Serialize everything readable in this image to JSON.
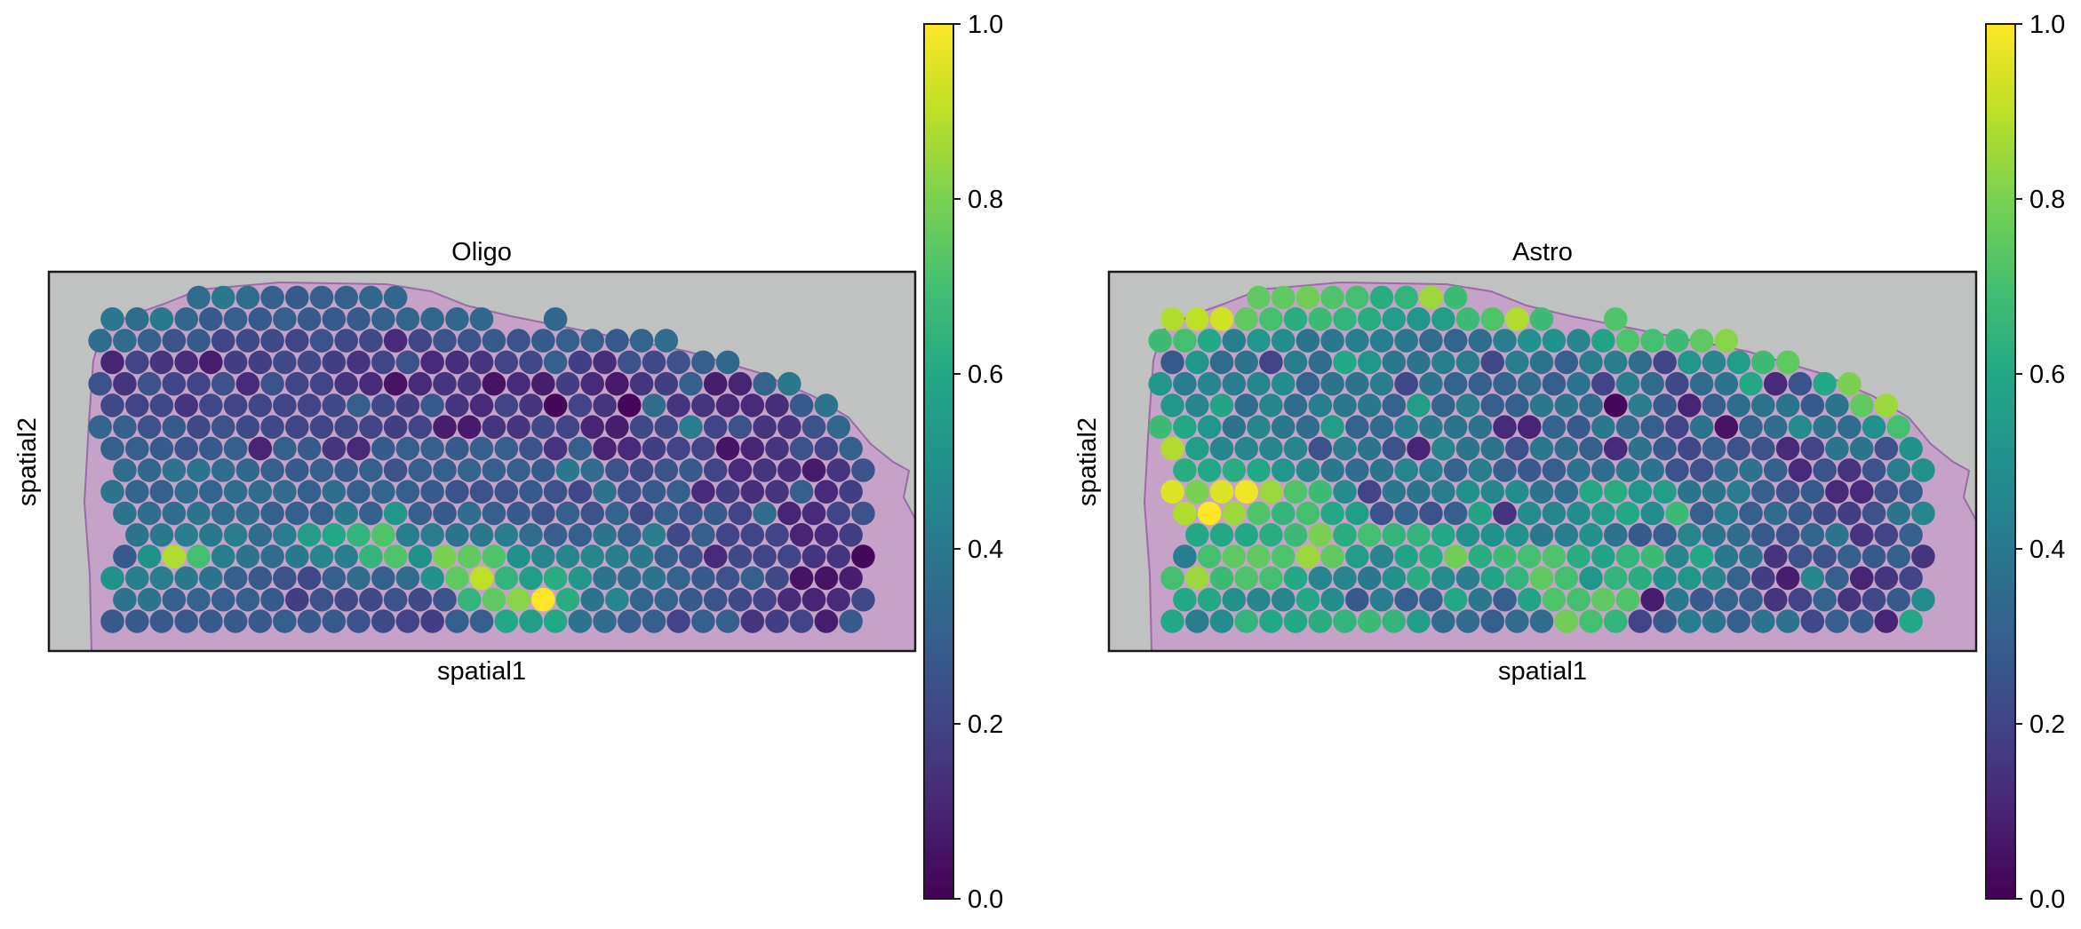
{
  "chart_data": [
    {
      "type": "scatter",
      "subtype": "spatial-spots",
      "title": "Oligo",
      "xlabel": "spatial1",
      "ylabel": "spatial2",
      "colormap": "viridis",
      "clim": [
        0.0,
        1.0
      ],
      "colorbar_ticks": [
        "0.0",
        "0.2",
        "0.4",
        "0.6",
        "0.8",
        "1.0"
      ],
      "rows": [
        {
          "col_start": 8,
          "values": [
            0.35,
            0.4,
            0.35,
            0.3,
            0.28,
            0.3,
            0.3,
            0.33,
            0.33
          ]
        },
        {
          "col_start": 1,
          "values": [
            0.4,
            0.35,
            0.4,
            0.33,
            0.28,
            0.3,
            0.28,
            0.3,
            0.28,
            0.28,
            0.28,
            0.3,
            0.33,
            0.33,
            0.33,
            0.33,
            null,
            null,
            0.33
          ]
        },
        {
          "col_start": 0,
          "values": [
            0.35,
            0.35,
            0.3,
            0.25,
            0.28,
            0.2,
            0.22,
            0.22,
            0.2,
            0.25,
            0.22,
            0.22,
            0.12,
            0.2,
            0.25,
            0.25,
            0.28,
            0.25,
            0.28,
            0.3,
            0.3,
            0.28,
            0.32,
            0.35
          ]
        },
        {
          "col_start": 1,
          "values": [
            0.1,
            0.2,
            0.15,
            0.13,
            0.08,
            0.18,
            0.18,
            0.22,
            0.22,
            0.18,
            0.15,
            0.2,
            0.25,
            0.12,
            0.13,
            0.15,
            0.2,
            0.22,
            0.3,
            0.18,
            0.13,
            0.25,
            0.22,
            0.25,
            0.3,
            0.33
          ]
        },
        {
          "col_start": 0,
          "values": [
            0.25,
            0.15,
            0.25,
            0.2,
            0.2,
            0.25,
            0.12,
            0.25,
            0.2,
            0.2,
            0.15,
            0.12,
            0.05,
            0.12,
            0.15,
            0.15,
            0.05,
            0.12,
            0.08,
            0.18,
            0.12,
            0.07,
            0.15,
            0.18,
            0.3,
            0.08,
            0.1,
            0.32,
            0.4
          ]
        },
        {
          "col_start": 1,
          "values": [
            0.22,
            0.2,
            0.22,
            0.15,
            0.22,
            0.2,
            0.2,
            0.2,
            0.2,
            0.22,
            0.3,
            0.22,
            0.18,
            0.28,
            0.15,
            0.12,
            0.2,
            0.15,
            0.02,
            0.2,
            0.15,
            0.02,
            0.35,
            0.15,
            0.15,
            0.12,
            0.12,
            0.13,
            0.28,
            0.38
          ]
        },
        {
          "col_start": 0,
          "values": [
            0.32,
            0.3,
            0.25,
            0.28,
            0.22,
            0.25,
            0.22,
            0.22,
            0.2,
            0.2,
            0.22,
            0.2,
            0.18,
            0.2,
            0.08,
            0.07,
            0.15,
            0.15,
            0.22,
            0.2,
            0.1,
            0.08,
            0.22,
            0.22,
            0.42,
            0.2,
            0.25,
            0.15,
            0.15,
            0.25,
            0.33
          ]
        },
        {
          "col_start": 1,
          "values": [
            0.3,
            0.3,
            0.28,
            0.25,
            0.28,
            0.3,
            0.1,
            0.3,
            0.28,
            0.15,
            0.12,
            0.28,
            0.3,
            0.3,
            0.28,
            0.3,
            0.3,
            0.25,
            0.15,
            0.3,
            0.1,
            0.12,
            0.18,
            0.2,
            0.2,
            0.05,
            0.1,
            0.15,
            0.25,
            0.2,
            0.3
          ]
        },
        {
          "col_start": 2,
          "values": [
            0.35,
            0.33,
            0.38,
            0.38,
            0.35,
            0.33,
            0.3,
            0.28,
            0.3,
            0.28,
            0.3,
            0.25,
            0.3,
            0.3,
            0.32,
            0.3,
            0.3,
            0.28,
            0.4,
            0.35,
            0.25,
            0.22,
            0.25,
            0.28,
            0.2,
            0.12,
            0.15,
            0.13,
            0.07,
            0.15,
            0.25
          ]
        },
        {
          "col_start": 1,
          "values": [
            0.38,
            0.32,
            0.3,
            0.35,
            0.32,
            0.35,
            0.35,
            0.35,
            0.3,
            0.35,
            0.3,
            0.32,
            0.3,
            0.28,
            0.25,
            0.25,
            0.25,
            0.28,
            0.25,
            0.22,
            0.38,
            0.25,
            0.28,
            0.3,
            0.12,
            0.18,
            0.13,
            0.15,
            0.3,
            0.12,
            0.18
          ]
        },
        {
          "col_start": 2,
          "values": [
            0.38,
            0.35,
            0.35,
            0.38,
            0.35,
            0.35,
            0.3,
            0.3,
            0.3,
            0.4,
            0.3,
            0.52,
            0.3,
            0.28,
            0.35,
            0.3,
            0.28,
            0.25,
            0.3,
            0.25,
            0.32,
            0.22,
            0.3,
            0.25,
            0.28,
            0.2,
            0.35,
            0.1,
            0.12,
            0.2,
            0.25
          ]
        },
        {
          "col_start": 3,
          "values": [
            0.38,
            0.4,
            0.42,
            0.4,
            0.42,
            0.35,
            0.42,
            0.55,
            0.6,
            0.65,
            0.72,
            0.42,
            0.42,
            0.38,
            0.4,
            0.42,
            0.35,
            0.3,
            0.3,
            0.38,
            0.3,
            0.42,
            0.22,
            0.3,
            0.2,
            0.2,
            0.2,
            0.1,
            0.12,
            0.18
          ]
        },
        {
          "col_start": 2,
          "values": [
            0.28,
            0.5,
            0.88,
            0.7,
            0.42,
            0.38,
            0.35,
            0.4,
            0.45,
            0.42,
            0.65,
            0.72,
            0.5,
            0.8,
            0.75,
            0.72,
            0.5,
            0.45,
            0.45,
            0.45,
            0.42,
            0.4,
            0.3,
            0.25,
            0.12,
            0.22,
            0.2,
            0.2,
            0.15,
            0.15,
            0.02
          ]
        },
        {
          "col_start": 1,
          "values": [
            0.5,
            0.42,
            0.42,
            0.4,
            0.38,
            0.3,
            0.28,
            0.25,
            0.22,
            0.3,
            0.35,
            0.3,
            0.35,
            0.5,
            0.75,
            0.9,
            0.65,
            0.55,
            0.62,
            0.52,
            0.38,
            0.35,
            0.38,
            0.32,
            0.28,
            0.25,
            0.3,
            0.22,
            0.05,
            0.05,
            0.08
          ]
        },
        {
          "col_start": 2,
          "values": [
            0.38,
            0.38,
            0.3,
            0.32,
            0.3,
            0.3,
            0.28,
            0.18,
            0.25,
            0.22,
            0.22,
            0.25,
            0.22,
            0.25,
            0.65,
            0.75,
            0.82,
            1.0,
            0.62,
            0.38,
            0.45,
            0.32,
            0.32,
            0.28,
            0.25,
            0.22,
            0.2,
            0.12,
            0.1,
            0.12,
            0.22
          ]
        },
        {
          "col_start": 1,
          "values": [
            0.28,
            0.28,
            0.28,
            0.28,
            0.28,
            0.28,
            0.28,
            0.3,
            0.28,
            0.28,
            0.25,
            0.22,
            0.2,
            0.18,
            0.3,
            0.3,
            0.6,
            0.55,
            0.6,
            0.38,
            0.35,
            0.3,
            0.3,
            0.2,
            0.3,
            0.3,
            0.15,
            0.18,
            0.2,
            0.08,
            0.28
          ]
        }
      ]
    },
    {
      "type": "scatter",
      "subtype": "spatial-spots",
      "title": "Astro",
      "xlabel": "spatial1",
      "ylabel": "spatial2",
      "colormap": "viridis",
      "clim": [
        0.0,
        1.0
      ],
      "colorbar_ticks": [
        "0.0",
        "0.2",
        "0.4",
        "0.6",
        "0.8",
        "1.0"
      ],
      "rows": [
        {
          "col_start": 8,
          "values": [
            0.75,
            0.75,
            0.78,
            0.72,
            0.7,
            0.62,
            0.65,
            0.85,
            0.68
          ]
        },
        {
          "col_start": 1,
          "values": [
            0.88,
            0.9,
            0.93,
            0.75,
            0.7,
            0.62,
            0.68,
            0.65,
            0.62,
            0.55,
            0.52,
            0.55,
            0.68,
            0.72,
            0.88,
            0.68,
            null,
            null,
            0.72
          ]
        },
        {
          "col_start": 0,
          "values": [
            0.68,
            0.7,
            0.6,
            0.42,
            0.52,
            0.48,
            0.38,
            0.4,
            0.42,
            0.42,
            0.4,
            0.35,
            0.32,
            0.35,
            0.42,
            0.5,
            0.5,
            0.45,
            0.58,
            0.72,
            0.7,
            0.68,
            0.75,
            0.82
          ]
        },
        {
          "col_start": 1,
          "values": [
            0.28,
            0.52,
            0.35,
            0.38,
            0.2,
            0.42,
            0.35,
            0.6,
            0.52,
            0.4,
            0.38,
            0.42,
            0.42,
            0.22,
            0.42,
            0.38,
            0.3,
            0.42,
            0.42,
            0.35,
            0.2,
            0.52,
            0.45,
            0.55,
            0.68,
            0.75
          ]
        },
        {
          "col_start": 0,
          "values": [
            0.52,
            0.42,
            0.45,
            0.42,
            0.45,
            0.48,
            0.32,
            0.38,
            0.38,
            0.42,
            0.22,
            0.38,
            0.32,
            0.3,
            0.32,
            0.35,
            0.3,
            0.38,
            0.2,
            0.42,
            0.35,
            0.22,
            0.35,
            0.38,
            0.6,
            0.12,
            0.25,
            0.6,
            0.8
          ]
        },
        {
          "col_start": 1,
          "values": [
            0.52,
            0.45,
            0.58,
            0.35,
            0.45,
            0.35,
            0.42,
            0.4,
            0.4,
            0.32,
            0.55,
            0.32,
            0.42,
            0.3,
            0.3,
            0.4,
            0.38,
            0.35,
            0.02,
            0.42,
            0.28,
            0.1,
            0.3,
            0.35,
            0.38,
            0.38,
            0.28,
            0.38,
            0.75,
            0.85
          ]
        },
        {
          "col_start": 0,
          "values": [
            0.68,
            0.6,
            0.52,
            0.38,
            0.45,
            0.4,
            0.35,
            0.55,
            0.32,
            0.35,
            0.42,
            0.4,
            0.38,
            0.38,
            0.12,
            0.1,
            0.32,
            0.28,
            0.4,
            0.35,
            0.3,
            0.2,
            0.38,
            0.05,
            0.32,
            0.35,
            0.48,
            0.38,
            0.35,
            0.5,
            0.7
          ]
        },
        {
          "col_start": 1,
          "values": [
            0.88,
            0.55,
            0.45,
            0.45,
            0.45,
            0.45,
            0.25,
            0.42,
            0.38,
            0.25,
            0.1,
            0.45,
            0.38,
            0.38,
            0.25,
            0.4,
            0.35,
            0.3,
            0.12,
            0.38,
            0.28,
            0.22,
            0.3,
            0.25,
            0.25,
            0.12,
            0.2,
            0.38,
            0.38,
            0.25,
            0.5
          ]
        },
        {
          "col_start": 2,
          "values": [
            0.62,
            0.6,
            0.62,
            0.6,
            0.52,
            0.45,
            0.4,
            0.35,
            0.38,
            0.45,
            0.42,
            0.32,
            0.42,
            0.3,
            0.28,
            0.3,
            0.38,
            0.35,
            0.4,
            0.38,
            0.25,
            0.25,
            0.35,
            0.38,
            0.3,
            0.12,
            0.25,
            0.15,
            0.25,
            0.42,
            0.5
          ]
        },
        {
          "col_start": 1,
          "values": [
            0.95,
            0.8,
            0.95,
            0.98,
            0.85,
            0.72,
            0.68,
            0.48,
            0.2,
            0.4,
            0.38,
            0.42,
            0.5,
            0.45,
            0.48,
            0.38,
            0.35,
            0.6,
            0.62,
            0.52,
            0.55,
            0.38,
            0.38,
            0.42,
            0.3,
            0.25,
            0.28,
            0.12,
            0.12,
            0.25,
            0.3
          ]
        },
        {
          "col_start": 2,
          "values": [
            0.88,
            1.0,
            0.85,
            0.72,
            0.65,
            0.7,
            0.6,
            0.55,
            0.25,
            0.32,
            0.25,
            0.3,
            0.58,
            0.15,
            0.48,
            0.45,
            0.48,
            0.55,
            0.6,
            0.48,
            0.68,
            0.3,
            0.42,
            0.3,
            0.35,
            0.28,
            0.22,
            0.18,
            0.25,
            0.38,
            0.45
          ]
        },
        {
          "col_start": 3,
          "values": [
            0.6,
            0.6,
            0.6,
            0.62,
            0.68,
            0.8,
            0.62,
            0.7,
            0.65,
            0.65,
            0.6,
            0.5,
            0.5,
            0.5,
            0.4,
            0.42,
            0.5,
            0.38,
            0.28,
            0.3,
            0.45,
            0.38,
            0.35,
            0.28,
            0.25,
            0.32,
            0.38,
            0.15,
            0.2,
            0.3
          ]
        },
        {
          "col_start": 2,
          "values": [
            0.42,
            0.7,
            0.75,
            0.75,
            0.72,
            0.85,
            0.75,
            0.55,
            0.45,
            0.58,
            0.62,
            0.78,
            0.62,
            0.68,
            0.7,
            0.72,
            0.62,
            0.58,
            0.65,
            0.68,
            0.45,
            0.6,
            0.4,
            0.38,
            0.15,
            0.25,
            0.25,
            0.3,
            0.28,
            0.3,
            0.15
          ]
        },
        {
          "col_start": 1,
          "values": [
            0.7,
            0.85,
            0.68,
            0.72,
            0.7,
            0.6,
            0.45,
            0.45,
            0.4,
            0.5,
            0.62,
            0.48,
            0.42,
            0.58,
            0.65,
            0.75,
            0.7,
            0.52,
            0.65,
            0.62,
            0.5,
            0.52,
            0.45,
            0.32,
            0.18,
            0.08,
            0.45,
            0.3,
            0.1,
            0.15,
            0.2
          ]
        },
        {
          "col_start": 2,
          "values": [
            0.6,
            0.6,
            0.5,
            0.45,
            0.45,
            0.6,
            0.48,
            0.28,
            0.42,
            0.3,
            0.32,
            0.6,
            0.4,
            0.3,
            0.58,
            0.72,
            0.7,
            0.75,
            0.72,
            0.08,
            0.4,
            0.28,
            0.32,
            0.3,
            0.15,
            0.2,
            0.32,
            0.15,
            0.22,
            0.28,
            0.48
          ]
        },
        {
          "col_start": 1,
          "values": [
            0.6,
            0.42,
            0.48,
            0.65,
            0.6,
            0.6,
            0.62,
            0.65,
            0.68,
            0.65,
            0.55,
            0.35,
            0.35,
            0.3,
            0.35,
            0.35,
            0.78,
            0.7,
            0.65,
            0.2,
            0.28,
            0.42,
            0.38,
            0.3,
            0.38,
            0.38,
            0.22,
            0.3,
            0.28,
            0.1,
            0.6
          ]
        }
      ]
    }
  ]
}
